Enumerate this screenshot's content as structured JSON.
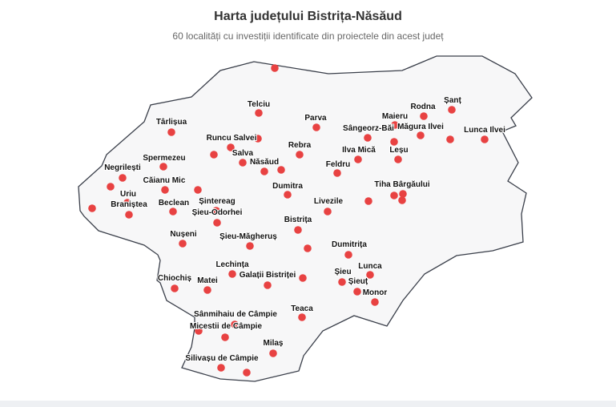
{
  "header": {
    "title": "Harta județului Bistrița-Năsăud",
    "subtitle": "60 localități cu investiții identificate din proiectele din acest județ"
  },
  "colors": {
    "marker": "#e84242",
    "county_fill": "#f7f7f8",
    "county_border": "#3a3f4a"
  },
  "labels": [
    "Telciu",
    "Parva",
    "Târlișua",
    "Runcu Salvei",
    "Salva",
    "Rebra",
    "Năsăud",
    "Spermezeu",
    "Negrilești",
    "Căianu Mic",
    "Uriu",
    "Braniștea",
    "Beclean",
    "Șintereag",
    "Șieu-Odorhei",
    "Dumitra",
    "Livezile",
    "Bistrița",
    "Rodna",
    "Șanț",
    "Maieru",
    "Sângeorz-Băi",
    "Măgura Ilvei",
    "Lunca Ilvei",
    "Ilva Mică",
    "Leșu",
    "Feldru",
    "Tiha Bârgăului",
    "Nușeni",
    "Șieu-Măgheruș",
    "Dumitrița",
    "Lechința",
    "Galații Bistriței",
    "Chiochiș",
    "Matei",
    "Șieu",
    "Lunca",
    "Șieuț",
    "Monor",
    "Teaca",
    "Sânmihaiu de Câmpie",
    "Micestii de Câmpie",
    "Milaș",
    "Silivașu de Câmpie"
  ]
}
